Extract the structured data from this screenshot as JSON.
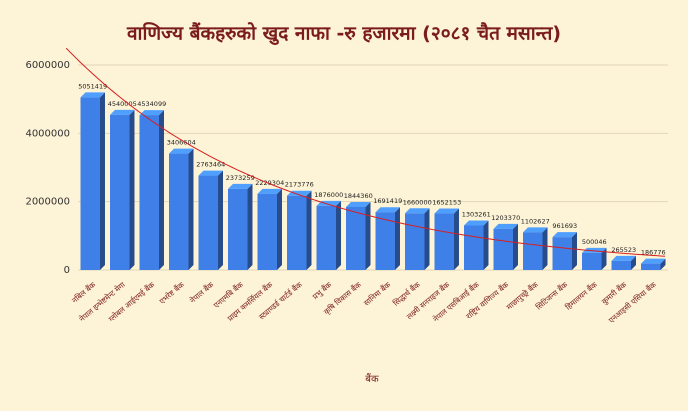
{
  "chart_data": {
    "type": "bar",
    "title": "वाणिज्य बैंकहरुको खुद नाफा -रु हजारमा (२०८१ चैत मसान्त)",
    "x_label": "बैंक",
    "categories": [
      "नबिल बैंक",
      "नेपाल इन्भेष्टमेन्ट मेगा",
      "ग्लोबल आईएमई बैंक",
      "एभरेष्ट बैंक",
      "नेपाल बैंक",
      "एनएमबि बैंक",
      "प्राइम कमर्सियल बैंक",
      "स्ट्याण्डर्ड चार्टर्ड बैंक",
      "प्रभु बैंक",
      "कृषि विकास बैंक",
      "सानिमा बैंक",
      "सिद्धार्थ बैंक",
      "लक्ष्मी सनराइज बैंक",
      "नेपाल एसबिआई बैंक",
      "राष्ट्रिय वाणिज्य बैंक",
      "माछापुच्छ्रे बैंक",
      "सिटिजन्स बैंक",
      "हिमालयन बैंक",
      "कुमारी बैंक",
      "एनआइसी एसिया बैंक"
    ],
    "values": [
      5051419,
      4540005,
      4534099,
      3406604,
      2763464,
      2373259,
      2229304,
      2173776,
      1876000,
      1844360,
      1691419,
      1660000,
      1652153,
      1303261,
      1203370,
      1102627,
      961693,
      500046,
      265523,
      186776
    ],
    "color": "#3f7fe8",
    "ylim": [
      0,
      6000000
    ],
    "yticks": [
      0,
      2000000,
      4000000,
      6000000
    ],
    "grid": true,
    "trendline": "exponential",
    "trendline_color": "#d62020"
  }
}
